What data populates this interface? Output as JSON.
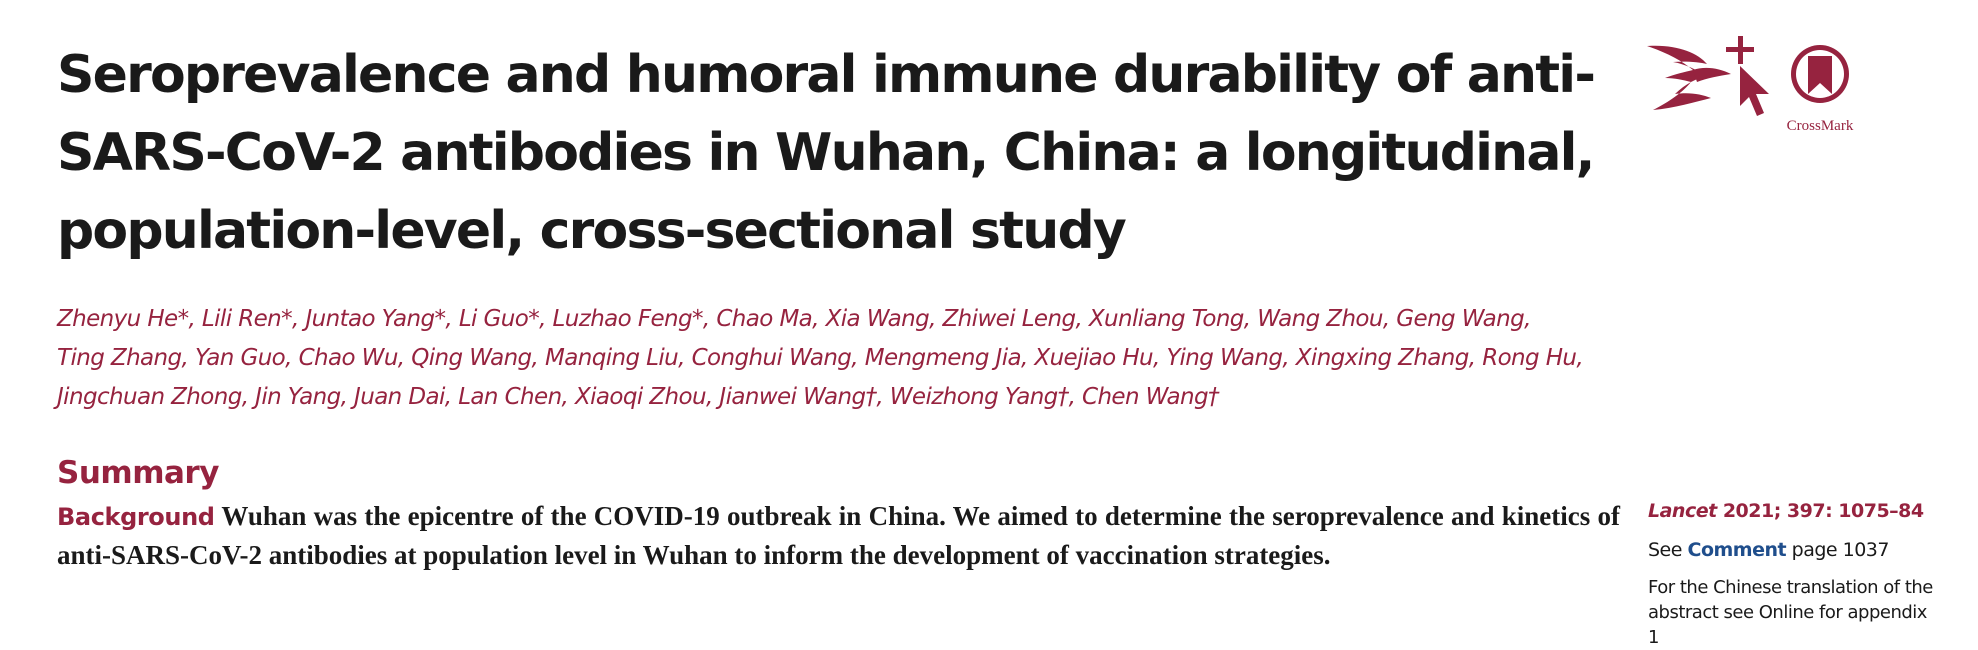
{
  "title": "Seroprevalence and humoral immune durability of anti-SARS-CoV-2 antibodies in Wuhan, China: a longitudinal, population-level, cross-sectional study",
  "authors": [
    "Zhenyu He*, Lili Ren*, Juntao Yang*, Li Guo*, Luzhao Feng*, Chao Ma, Xia Wang, Zhiwei Leng, Xunliang Tong, Wang Zhou, Geng Wang,",
    "Ting Zhang, Yan Guo, Chao Wu, Qing Wang, Manqing Liu, Conghui Wang, Mengmeng Jia, Xuejiao Hu, Ying Wang, Xingxing Zhang, Rong Hu,",
    "Jingchuan Zhong, Jin Yang, Juan Dai, Lan Chen, Xiaoqi Zhou, Jianwei Wang†, Weizhong Yang†, Chen Wang†"
  ],
  "crossmark": {
    "label": "CrossMark",
    "color": "#96233f"
  },
  "summary": {
    "heading": "Summary",
    "background_label": "Background",
    "background_text": "Wuhan was the epicentre of the COVID-19 outbreak in China. We aimed to determine the seroprevalence and kinetics of anti-SARS-CoV-2 antibodies at population level in Wuhan to inform the development of vaccination strategies."
  },
  "sidebar": {
    "journal": "Lancet",
    "citation": "2021; 397: 1075–84",
    "see_prefix": "See",
    "see_link": "Comment",
    "see_suffix": "page 1037",
    "note": "For the Chinese translation of the abstract see Online for appendix 1"
  },
  "colors": {
    "accent": "#96233f",
    "link": "#1f4e8c",
    "text": "#1a1a1a"
  }
}
